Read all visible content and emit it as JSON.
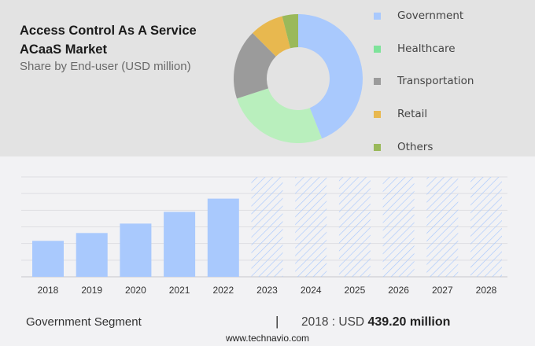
{
  "header": {
    "title_line1": "Access Control As A Service",
    "title_line2": "ACaaS Market",
    "subtitle": "Share by End-user (USD million)"
  },
  "legend": [
    {
      "label": "Government",
      "color": "#a9c9fd"
    },
    {
      "label": "Healthcare",
      "color": "#7ee39a"
    },
    {
      "label": "Transportation",
      "color": "#9b9b9b"
    },
    {
      "label": "Retail",
      "color": "#e8b84f"
    },
    {
      "label": "Others",
      "color": "#9ab95a"
    }
  ],
  "footer": {
    "segment": "Government Segment",
    "separator": "|",
    "value_prefix": "2018 : USD",
    "value_bold": "439.20 million",
    "url": "www.technavio.com"
  },
  "chart_data": [
    {
      "type": "pie",
      "subtype": "donut",
      "title": "Share by End-user (USD million)",
      "categories": [
        "Government",
        "Healthcare",
        "Transportation",
        "Retail",
        "Others"
      ],
      "values": [
        44,
        26,
        17.5,
        8.5,
        4
      ],
      "unit": "percent (estimated)",
      "colors": [
        "#a9c9fd",
        "#b9efbd",
        "#9b9b9b",
        "#e8b84f",
        "#9ab95a"
      ],
      "legend_position": "right"
    },
    {
      "type": "bar",
      "title": "Government Segment",
      "categories": [
        "2018",
        "2019",
        "2020",
        "2021",
        "2022",
        "2023",
        "2024",
        "2025",
        "2026",
        "2027",
        "2028"
      ],
      "values": [
        439.2,
        535,
        650,
        793,
        955,
        null,
        null,
        null,
        null,
        null,
        null
      ],
      "forecast": [
        false,
        false,
        false,
        false,
        false,
        true,
        true,
        true,
        true,
        true,
        true
      ],
      "forecast_display_value": 1220,
      "ylim": [
        0,
        1220
      ],
      "gridlines": 6,
      "grid": true,
      "xlabel": "",
      "ylabel": "",
      "bar_color": "#a9c9fd",
      "forecast_hatch_color": "#a9c9fd"
    }
  ]
}
